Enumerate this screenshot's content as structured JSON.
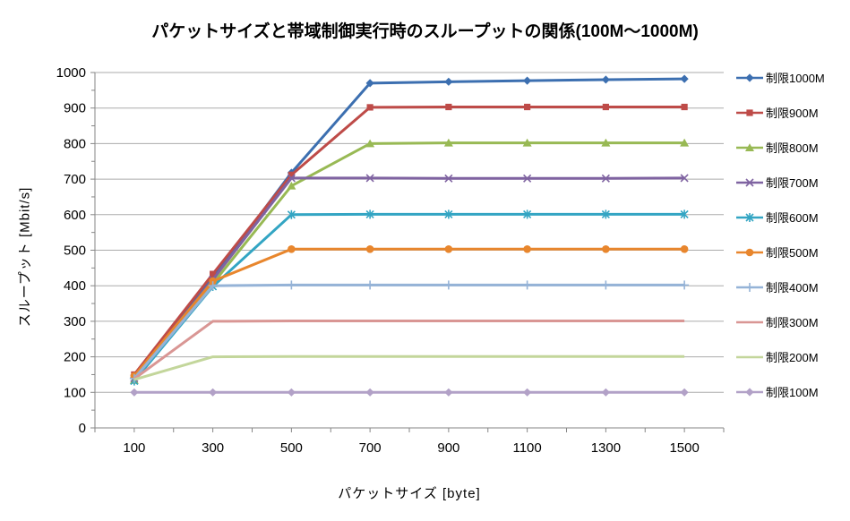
{
  "chart_data": {
    "type": "line",
    "title": "パケットサイズと帯域制御実行時のスループットの関係(100M～1000M)",
    "xlabel": "パケットサイズ [byte]",
    "ylabel": "スループット [Mbit/s]",
    "categories": [
      100,
      300,
      500,
      700,
      900,
      1100,
      1300,
      1500
    ],
    "ylim": [
      0,
      1000
    ],
    "ytick_interval": 100,
    "grid": "horizontal",
    "legend_position": "right",
    "series": [
      {
        "name": "制限1000M",
        "color": "#3C6FB0",
        "marker": "diamond",
        "values": [
          142,
          422,
          718,
          970,
          974,
          977,
          980,
          982
        ]
      },
      {
        "name": "制限900M",
        "color": "#BE4B48",
        "marker": "square",
        "values": [
          150,
          433,
          712,
          902,
          903,
          903,
          903,
          903
        ]
      },
      {
        "name": "制限800M",
        "color": "#98B954",
        "marker": "triangle",
        "values": [
          134,
          406,
          681,
          800,
          802,
          802,
          802,
          802
        ]
      },
      {
        "name": "制限700M",
        "color": "#7F63A1",
        "marker": "x",
        "values": [
          140,
          417,
          703,
          703,
          702,
          702,
          702,
          703
        ]
      },
      {
        "name": "制限600M",
        "color": "#33A5C3",
        "marker": "asterisk",
        "values": [
          132,
          398,
          600,
          601,
          601,
          601,
          601,
          601
        ]
      },
      {
        "name": "制限500M",
        "color": "#E8862D",
        "marker": "circle",
        "values": [
          146,
          413,
          503,
          503,
          503,
          503,
          503,
          503
        ]
      },
      {
        "name": "制限400M",
        "color": "#95B3D7",
        "marker": "plus",
        "values": [
          139,
          400,
          402,
          402,
          402,
          402,
          402,
          402
        ]
      },
      {
        "name": "制限300M",
        "color": "#D99694",
        "marker": "none",
        "values": [
          138,
          300,
          301,
          301,
          301,
          301,
          301,
          301
        ]
      },
      {
        "name": "制限200M",
        "color": "#C3D69B",
        "marker": "none",
        "values": [
          136,
          200,
          201,
          201,
          201,
          201,
          201,
          201
        ]
      },
      {
        "name": "制限100M",
        "color": "#B2A1C7",
        "marker": "diamond",
        "values": [
          100,
          100,
          100,
          100,
          100,
          100,
          100,
          100
        ]
      }
    ],
    "colors": {
      "gridline": "#ABABAB",
      "axis": "#868686",
      "text": "#000000",
      "background": "#FFFFFF"
    }
  }
}
